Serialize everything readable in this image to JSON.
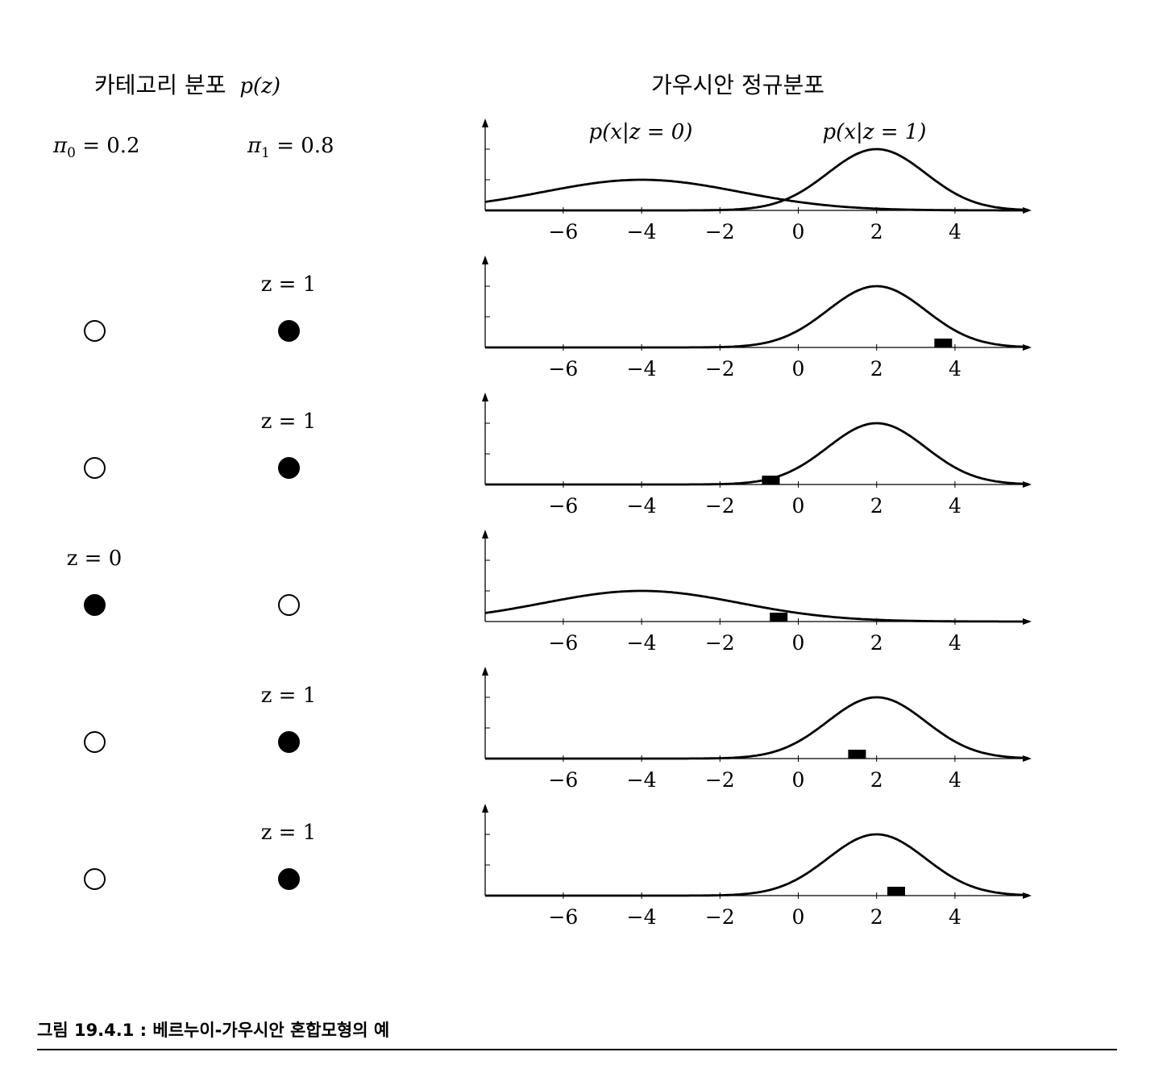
{
  "headers": {
    "categorical": "카테고리 분포",
    "categorical_math": "p(z)",
    "gaussian": "가우시안 정규분포"
  },
  "priors": [
    {
      "symbol": "π",
      "sub": "0",
      "value": "= 0.2"
    },
    {
      "symbol": "π",
      "sub": "1",
      "value": "= 0.8"
    }
  ],
  "curve_labels": [
    "p(x|z = 0)",
    "p(x|z = 1)"
  ],
  "z_label_0": "z = 0",
  "z_label_1": "z = 1",
  "samples": [
    {
      "z": 1,
      "x": 3.7
    },
    {
      "z": 1,
      "x": -0.7
    },
    {
      "z": 0,
      "x": -0.5
    },
    {
      "z": 1,
      "x": 1.5
    },
    {
      "z": 1,
      "x": 2.5
    }
  ],
  "chart_data": {
    "type": "line",
    "x_ticks": [
      -6,
      -4,
      -2,
      0,
      2,
      4
    ],
    "x_tick_labels": [
      "−6",
      "−4",
      "−2",
      "0",
      "2",
      "4"
    ],
    "xlim": [
      -8,
      5.8
    ],
    "series": [
      {
        "name": "p(x|z = 0)",
        "mean": -4,
        "std": 2.5,
        "peak_height": 1.0
      },
      {
        "name": "p(x|z = 1)",
        "mean": 2,
        "std": 1.25,
        "peak_height": 2.0
      }
    ]
  },
  "caption": "그림 19.4.1 : 베르누이-가우시안 혼합모형의 예"
}
